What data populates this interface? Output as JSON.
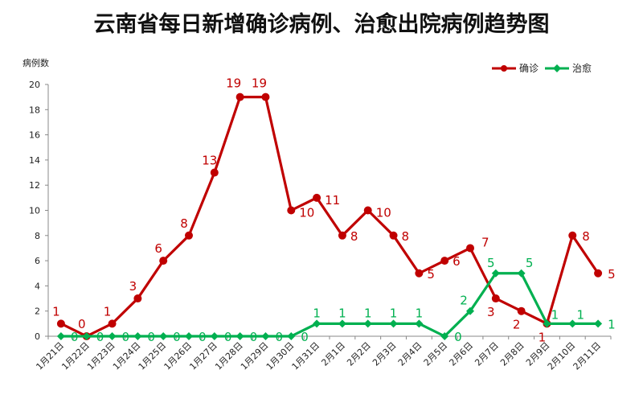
{
  "chart_data": {
    "type": "line",
    "title": "云南省每日新增确诊病例、治愈出院病例趋势图",
    "ylabel": "病例数",
    "xlabel": "",
    "ylim": [
      0,
      20
    ],
    "yticks": [
      0,
      2,
      4,
      6,
      8,
      10,
      12,
      14,
      16,
      18,
      20
    ],
    "grid": false,
    "legend_position": "top-right",
    "categories": [
      "1月21日",
      "1月22日",
      "1月23日",
      "1月24日",
      "1月25日",
      "1月26日",
      "1月27日",
      "1月28日",
      "1月29日",
      "1月30日",
      "1月31日",
      "2月1日",
      "2月2日",
      "2月3日",
      "2月4日",
      "2月5日",
      "2月6日",
      "2月7日",
      "2月8日",
      "2月9日",
      "2月10日",
      "2月11日"
    ],
    "series": [
      {
        "name": "确诊",
        "color": "#c00000",
        "marker": "circle",
        "values": [
          1,
          0,
          1,
          3,
          6,
          8,
          13,
          19,
          19,
          10,
          11,
          8,
          10,
          8,
          5,
          6,
          7,
          3,
          2,
          1,
          8,
          5
        ]
      },
      {
        "name": "治愈",
        "color": "#00b050",
        "marker": "diamond",
        "values": [
          0,
          0,
          0,
          0,
          0,
          0,
          0,
          0,
          0,
          0,
          1,
          1,
          1,
          1,
          1,
          0,
          2,
          5,
          5,
          1,
          1,
          1
        ]
      }
    ]
  }
}
